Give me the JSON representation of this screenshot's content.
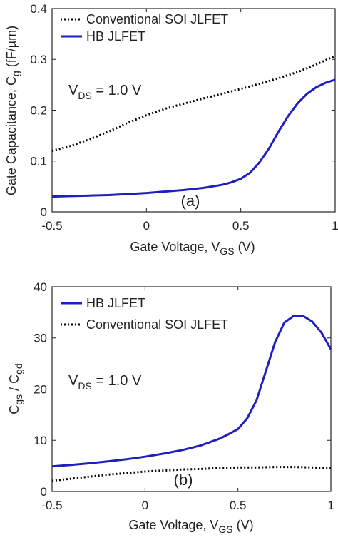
{
  "chart_data": [
    {
      "type": "line",
      "panel_label": "(a)",
      "x_range": [
        -0.5,
        1
      ],
      "ylim": [
        0,
        0.4
      ],
      "x_ticks": [
        "-0.5",
        "0",
        "0.5",
        "1"
      ],
      "y_ticks": [
        "0",
        "0.1",
        "0.2",
        "0.3",
        "0.4"
      ],
      "xlabel": {
        "main": "Gate Voltage, V",
        "sub": "GS",
        "unit": " (V)"
      },
      "ylabel": {
        "main": "Gate Capacitance, C",
        "sub": "g",
        "unit": " (fF/µm)"
      },
      "annotation": {
        "main": "V",
        "sub": "DS",
        "rest": " = 1.0 V"
      },
      "legend_position": "top-left",
      "grid": false,
      "series": [
        {
          "name": "Conventional SOI JLFET",
          "color": "#000000",
          "style": "dotted",
          "x": [
            -0.5,
            -0.4,
            -0.3,
            -0.2,
            -0.1,
            0,
            0.1,
            0.2,
            0.3,
            0.4,
            0.5,
            0.6,
            0.7,
            0.8,
            0.9,
            1.0
          ],
          "y": [
            0.12,
            0.13,
            0.143,
            0.158,
            0.175,
            0.19,
            0.203,
            0.213,
            0.223,
            0.232,
            0.242,
            0.252,
            0.263,
            0.275,
            0.29,
            0.307
          ]
        },
        {
          "name": "HB JLFET",
          "color": "#1f1fbf",
          "style": "solid",
          "x": [
            -0.5,
            -0.4,
            -0.3,
            -0.2,
            -0.1,
            0,
            0.1,
            0.2,
            0.3,
            0.4,
            0.45,
            0.5,
            0.55,
            0.6,
            0.65,
            0.7,
            0.75,
            0.8,
            0.85,
            0.9,
            0.95,
            1.0
          ],
          "y": [
            0.03,
            0.031,
            0.032,
            0.033,
            0.035,
            0.037,
            0.04,
            0.043,
            0.047,
            0.053,
            0.058,
            0.065,
            0.077,
            0.098,
            0.125,
            0.158,
            0.188,
            0.213,
            0.232,
            0.245,
            0.254,
            0.26
          ]
        }
      ]
    },
    {
      "type": "line",
      "panel_label": "(b)",
      "x_range": [
        -0.5,
        1
      ],
      "ylim": [
        0,
        40
      ],
      "x_ticks": [
        "-0.5",
        "0",
        "0.5",
        "1"
      ],
      "y_ticks": [
        "0",
        "10",
        "20",
        "30",
        "40"
      ],
      "xlabel": {
        "main": "Gate Voltage, V",
        "sub": "GS",
        "unit": " (V)"
      },
      "ylabel": {
        "main": "C",
        "sub": "gs",
        "mid": " / C",
        "sub2": "gd"
      },
      "annotation": {
        "main": "V",
        "sub": "DS",
        "rest": " = 1.0 V"
      },
      "legend_position": "top-left",
      "grid": false,
      "series": [
        {
          "name": "HB JLFET",
          "color": "#1f1fbf",
          "style": "solid",
          "x": [
            -0.5,
            -0.4,
            -0.3,
            -0.2,
            -0.1,
            0,
            0.1,
            0.2,
            0.3,
            0.4,
            0.45,
            0.5,
            0.55,
            0.6,
            0.65,
            0.7,
            0.75,
            0.8,
            0.85,
            0.9,
            0.95,
            1.0
          ],
          "y": [
            4.9,
            5.2,
            5.5,
            5.9,
            6.3,
            6.8,
            7.4,
            8.1,
            9.0,
            10.3,
            11.2,
            12.2,
            14.3,
            17.8,
            23.5,
            29.2,
            33.0,
            34.3,
            34.3,
            33.2,
            31.0,
            27.8
          ]
        },
        {
          "name": "Conventional SOI JLFET",
          "color": "#000000",
          "style": "dotted",
          "x": [
            -0.5,
            -0.4,
            -0.3,
            -0.2,
            -0.1,
            0,
            0.1,
            0.2,
            0.3,
            0.4,
            0.5,
            0.6,
            0.7,
            0.8,
            0.9,
            1.0
          ],
          "y": [
            2.1,
            2.5,
            2.9,
            3.3,
            3.6,
            3.9,
            4.1,
            4.3,
            4.4,
            4.6,
            4.7,
            4.7,
            4.8,
            4.8,
            4.7,
            4.6
          ]
        }
      ]
    }
  ]
}
